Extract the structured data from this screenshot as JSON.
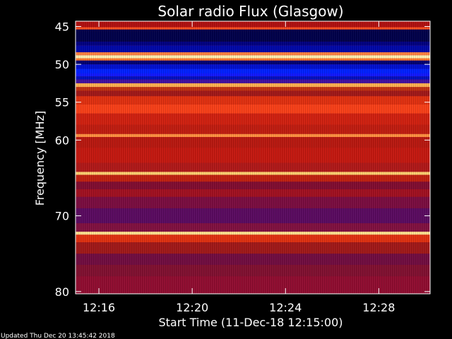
{
  "chart_data": {
    "type": "heatmap",
    "title": "Solar radio Flux (Glasgow)",
    "xlabel": "Start Time (11-Dec-18 12:15:00)",
    "ylabel": "Frequency [MHz]",
    "x_unit": "minutes after 12:15:00",
    "xlim": [
      0,
      15.2
    ],
    "ylim": [
      44.3,
      80.3
    ],
    "y_inverted": true,
    "x_ticks": [
      {
        "value": 1,
        "label": "12:16"
      },
      {
        "value": 5,
        "label": "12:20"
      },
      {
        "value": 9,
        "label": "12:24"
      },
      {
        "value": 13,
        "label": "12:28"
      }
    ],
    "y_ticks": [
      {
        "value": 45,
        "label": "45"
      },
      {
        "value": 50,
        "label": "50"
      },
      {
        "value": 55,
        "label": "55"
      },
      {
        "value": 60,
        "label": "60"
      },
      {
        "value": 70,
        "label": "70"
      },
      {
        "value": 80,
        "label": "80"
      }
    ],
    "bands": [
      {
        "from": 44.3,
        "to": 45.1,
        "color": "#b01010"
      },
      {
        "from": 45.1,
        "to": 45.4,
        "color": "#ff5020"
      },
      {
        "from": 45.4,
        "to": 47.0,
        "color": "#00004a"
      },
      {
        "from": 47.0,
        "to": 47.5,
        "color": "#000080"
      },
      {
        "from": 47.5,
        "to": 48.4,
        "color": "#0008a8"
      },
      {
        "from": 48.4,
        "to": 48.8,
        "color": "#ff8040"
      },
      {
        "from": 48.8,
        "to": 49.2,
        "color": "#fff0b0"
      },
      {
        "from": 49.2,
        "to": 49.5,
        "color": "#ff7a30"
      },
      {
        "from": 49.5,
        "to": 50.0,
        "color": "#000070"
      },
      {
        "from": 50.0,
        "to": 50.6,
        "color": "#0010d0"
      },
      {
        "from": 50.6,
        "to": 51.2,
        "color": "#0020ff"
      },
      {
        "from": 51.2,
        "to": 51.6,
        "color": "#1018ff"
      },
      {
        "from": 51.6,
        "to": 52.0,
        "color": "#0010c0"
      },
      {
        "from": 52.0,
        "to": 52.5,
        "color": "#4010a0"
      },
      {
        "from": 52.5,
        "to": 53.0,
        "color": "#ffb050"
      },
      {
        "from": 53.0,
        "to": 53.5,
        "color": "#c03010"
      },
      {
        "from": 53.5,
        "to": 54.2,
        "color": "#a01818"
      },
      {
        "from": 54.2,
        "to": 55.3,
        "color": "#e03010"
      },
      {
        "from": 55.3,
        "to": 56.5,
        "color": "#f84018"
      },
      {
        "from": 56.5,
        "to": 58.0,
        "color": "#d02010"
      },
      {
        "from": 58.0,
        "to": 59.2,
        "color": "#c01c10"
      },
      {
        "from": 59.2,
        "to": 59.6,
        "color": "#ff9040"
      },
      {
        "from": 59.6,
        "to": 61.0,
        "color": "#b81810"
      },
      {
        "from": 61.0,
        "to": 63.0,
        "color": "#c41810"
      },
      {
        "from": 63.0,
        "to": 64.2,
        "color": "#b01818"
      },
      {
        "from": 64.2,
        "to": 64.6,
        "color": "#ffd070"
      },
      {
        "from": 64.6,
        "to": 65.5,
        "color": "#c02010"
      },
      {
        "from": 65.5,
        "to": 66.5,
        "color": "#800c30"
      },
      {
        "from": 66.5,
        "to": 67.5,
        "color": "#a01020"
      },
      {
        "from": 67.5,
        "to": 69.0,
        "color": "#7a0c40"
      },
      {
        "from": 69.0,
        "to": 71.0,
        "color": "#5a0a60"
      },
      {
        "from": 71.0,
        "to": 72.1,
        "color": "#801040"
      },
      {
        "from": 72.1,
        "to": 72.5,
        "color": "#ffe090"
      },
      {
        "from": 72.5,
        "to": 73.5,
        "color": "#e03010"
      },
      {
        "from": 73.5,
        "to": 75.0,
        "color": "#a01818"
      },
      {
        "from": 75.0,
        "to": 76.5,
        "color": "#700c40"
      },
      {
        "from": 76.5,
        "to": 78.0,
        "color": "#801030"
      },
      {
        "from": 78.0,
        "to": 80.3,
        "color": "#900c30"
      }
    ],
    "grid": false,
    "legend": "none"
  },
  "footer": {
    "updated": "Updated Thu Dec 20 13:45:42 2018"
  }
}
